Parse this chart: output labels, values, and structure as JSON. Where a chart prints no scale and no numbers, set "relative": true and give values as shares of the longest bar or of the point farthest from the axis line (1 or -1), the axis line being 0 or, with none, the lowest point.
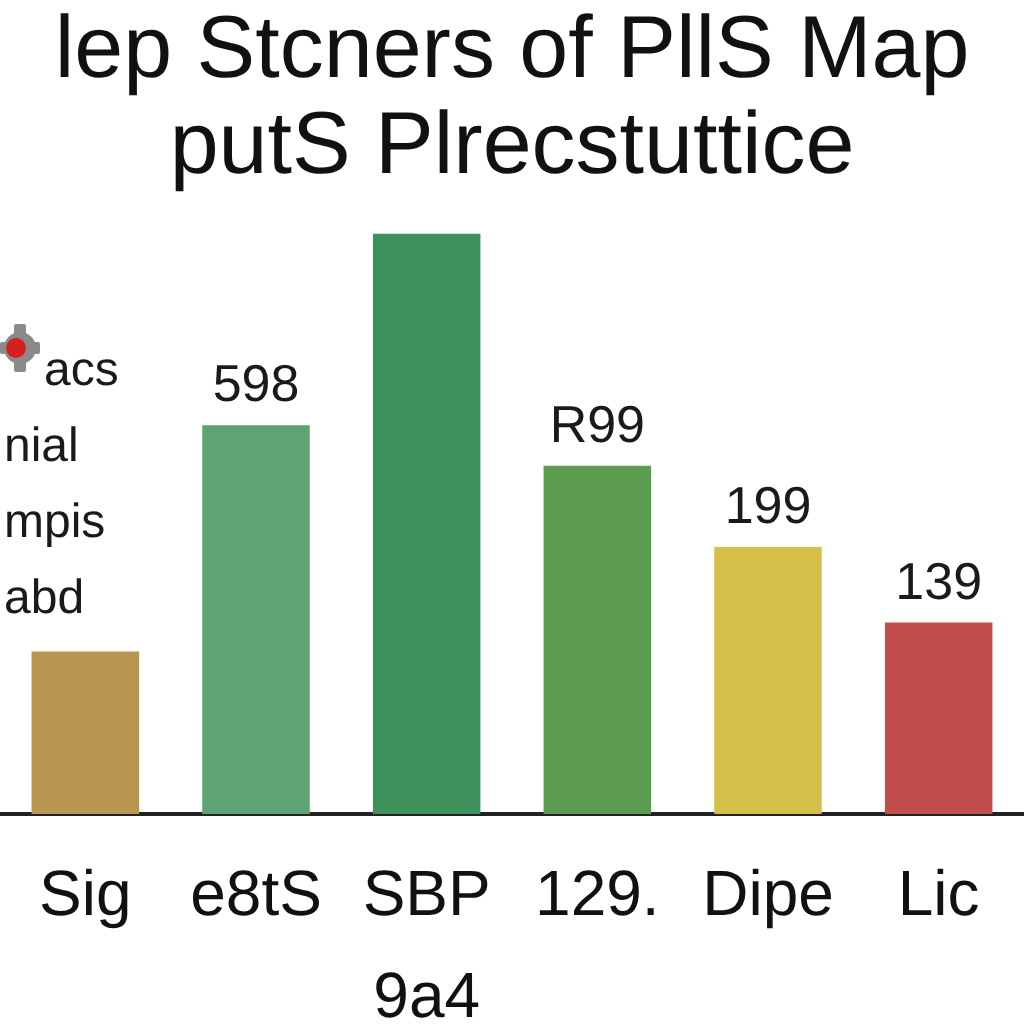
{
  "chart_data": {
    "type": "bar",
    "title": "lep Stcners of PllS Map",
    "subtitle": "putS Plrecstuttice",
    "categories": [
      "Sig",
      "e8tS",
      "SBP\n9a4",
      "129.",
      "Dipe",
      "Lic"
    ],
    "values": [
      0.28,
      0.67,
      1,
      0.6,
      0.46,
      0.33
    ],
    "relative": true,
    "colors": [
      "#b8964f",
      "#5fa274",
      "#3f915c",
      "#5c9c50",
      "#d6bf48",
      "#c24e4c"
    ],
    "annotations": [
      "acs",
      "nial",
      "mpis",
      "abd",
      {
        "text": "598",
        "x": "e8tS",
        "y": 0.67
      },
      {
        "text": "R99",
        "x": "129.",
        "y": 0.6
      },
      {
        "text": "199",
        "x": "Dipe",
        "y": 0.46
      },
      {
        "text": "139",
        "x": "Lic",
        "y": 0.33
      }
    ]
  }
}
